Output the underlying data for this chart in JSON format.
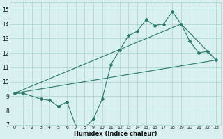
{
  "xlabel": "Humidex (Indice chaleur)",
  "ylabel": "",
  "bg_color": "#d8f0f0",
  "grid_color": "#b0d8d4",
  "line_color": "#2a7a6a",
  "xlim": [
    -0.5,
    23.5
  ],
  "ylim": [
    7,
    15.5
  ],
  "xticks": [
    0,
    1,
    2,
    3,
    4,
    5,
    6,
    7,
    8,
    9,
    10,
    11,
    12,
    13,
    14,
    15,
    16,
    17,
    18,
    19,
    20,
    21,
    22,
    23
  ],
  "yticks": [
    7,
    8,
    9,
    10,
    11,
    12,
    13,
    14,
    15
  ],
  "series": [
    {
      "x": [
        0,
        1,
        3,
        4,
        5,
        6,
        7,
        8,
        9,
        10,
        11,
        12,
        13,
        14,
        15,
        16,
        17,
        18,
        19,
        20,
        21,
        22,
        23
      ],
      "y": [
        9.2,
        9.2,
        8.8,
        8.7,
        8.3,
        8.6,
        6.9,
        6.8,
        7.4,
        8.8,
        11.2,
        12.2,
        13.2,
        13.5,
        14.3,
        13.9,
        14.0,
        14.85,
        14.0,
        12.8,
        12.0,
        12.1,
        11.5
      ]
    },
    {
      "x": [
        0,
        23
      ],
      "y": [
        9.2,
        11.5
      ]
    },
    {
      "x": [
        0,
        19,
        23
      ],
      "y": [
        9.2,
        14.0,
        11.5
      ]
    }
  ]
}
